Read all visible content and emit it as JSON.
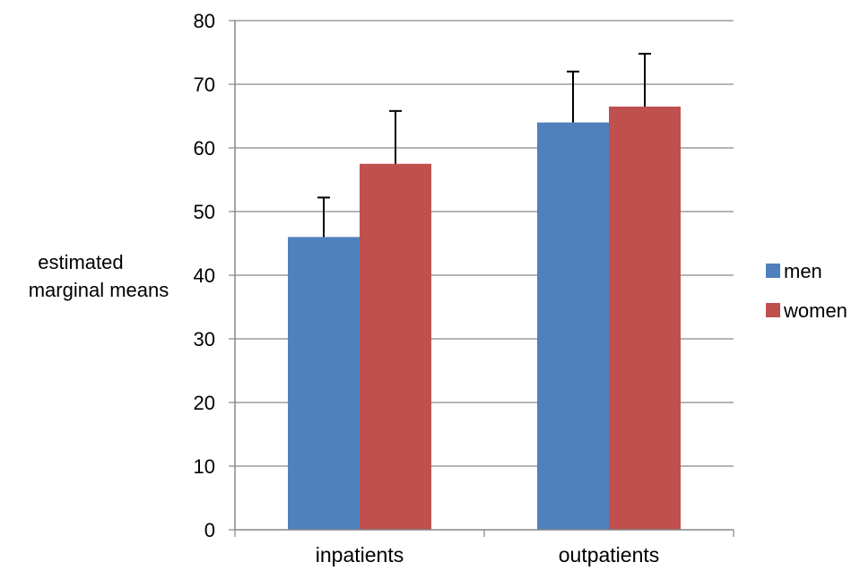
{
  "chart_data": {
    "type": "bar",
    "ylabel": [
      "estimated",
      "marginal means"
    ],
    "xlabel": "",
    "categories": [
      "inpatients",
      "outpatients"
    ],
    "ylim": [
      0,
      80
    ],
    "yticks": [
      0,
      10,
      20,
      30,
      40,
      50,
      60,
      70,
      80
    ],
    "grid": true,
    "legend": "right",
    "series": [
      {
        "name": "men",
        "color": "#4F81BD",
        "values": [
          46,
          64
        ],
        "errors": [
          6.2,
          8
        ]
      },
      {
        "name": "women",
        "color": "#C0504D",
        "values": [
          57.5,
          66.5
        ],
        "errors": [
          8.3,
          8.3
        ]
      }
    ]
  }
}
